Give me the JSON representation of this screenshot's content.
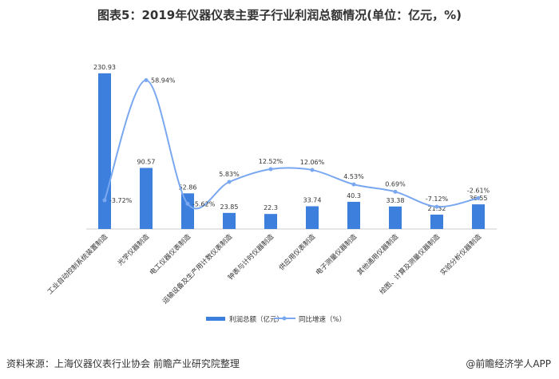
{
  "title": "图表5：2019年仪器仪表主要子行业利润总额情况(单位：亿元，%)",
  "footer": {
    "source": "资料来源：上海仪器仪表行业协会 前瞻产业研究院整理",
    "brand": "@前瞻经济学人APP"
  },
  "chart_data": {
    "type": "bar+line",
    "categories": [
      "工业自动控制系统装置制造",
      "光学仪器制造",
      "电工仪器仪表制造",
      "运输设备及生产用计数仪表制造",
      "钟表与计时仪器制造",
      "供应用仪表制造",
      "电子测量仪器制造",
      "其他通用仪器制造",
      "绘图、计算及测量仪器制造",
      "实验分析仪器制造"
    ],
    "series": [
      {
        "name": "利润总额（亿元）",
        "type": "bar",
        "values": [
          230.93,
          90.57,
          52.86,
          23.85,
          22.3,
          33.74,
          40.3,
          33.38,
          21.32,
          36.55
        ],
        "labels": [
          "230.93",
          "90.57",
          "52.86",
          "23.85",
          "22.3",
          "33.74",
          "40.3",
          "33.38",
          "21.32",
          "36.55"
        ],
        "color": "#3d7fdc"
      },
      {
        "name": "同比增速（%）",
        "type": "line",
        "values": [
          -3.72,
          58.94,
          -5.62,
          5.83,
          12.52,
          12.06,
          4.53,
          0.69,
          -7.12,
          -2.61
        ],
        "labels": [
          "-3.72%",
          "58.94%",
          "-5.62%",
          "5.83%",
          "12.52%",
          "12.06%",
          "4.53%",
          "0.69%",
          "-7.12%",
          "-2.61%"
        ],
        "color": "#7aa8f0"
      }
    ],
    "legend": "bottom",
    "grid": false
  }
}
